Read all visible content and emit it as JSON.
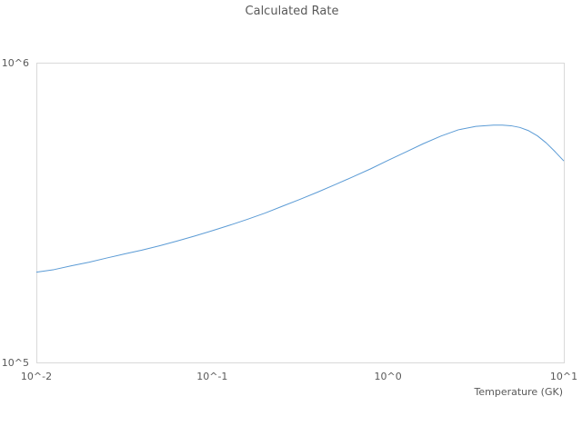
{
  "chart_data": {
    "type": "line",
    "title": "Calculated Rate",
    "xlabel": "Temperature (GK)",
    "ylabel": "",
    "x_scale": "log",
    "y_scale": "log",
    "xlim": [
      0.01,
      10
    ],
    "ylim": [
      100000,
      1000000
    ],
    "x_tick_labels": [
      "10^-2",
      "10^-1",
      "10^0",
      "10^1"
    ],
    "y_tick_labels": [
      "10^5",
      "10^6"
    ],
    "grid": false,
    "legend": "none",
    "colors": {
      "line": "#5b9bd5",
      "plot_border": "#d9d9d9",
      "text": "#595959"
    },
    "series": [
      {
        "x": [
          0.01,
          0.0126,
          0.0158,
          0.02,
          0.0251,
          0.0316,
          0.0398,
          0.0501,
          0.0631,
          0.0794,
          0.1,
          0.126,
          0.158,
          0.2,
          0.251,
          0.316,
          0.398,
          0.501,
          0.631,
          0.794,
          1.0,
          1.26,
          1.58,
          2.0,
          2.51,
          3.16,
          3.98,
          4.47,
          5.01,
          5.62,
          6.31,
          7.08,
          7.94,
          8.91,
          10.0
        ],
        "values": [
          200000,
          204000,
          210000,
          216000,
          223000,
          230000,
          237000,
          245000,
          254000,
          264000,
          275000,
          287000,
          300000,
          315000,
          332000,
          350000,
          370000,
          392000,
          416000,
          442000,
          472000,
          503000,
          536000,
          569000,
          597000,
          613000,
          619000,
          619000,
          616000,
          608000,
          593000,
          570000,
          540000,
          505000,
          470000
        ]
      }
    ]
  }
}
